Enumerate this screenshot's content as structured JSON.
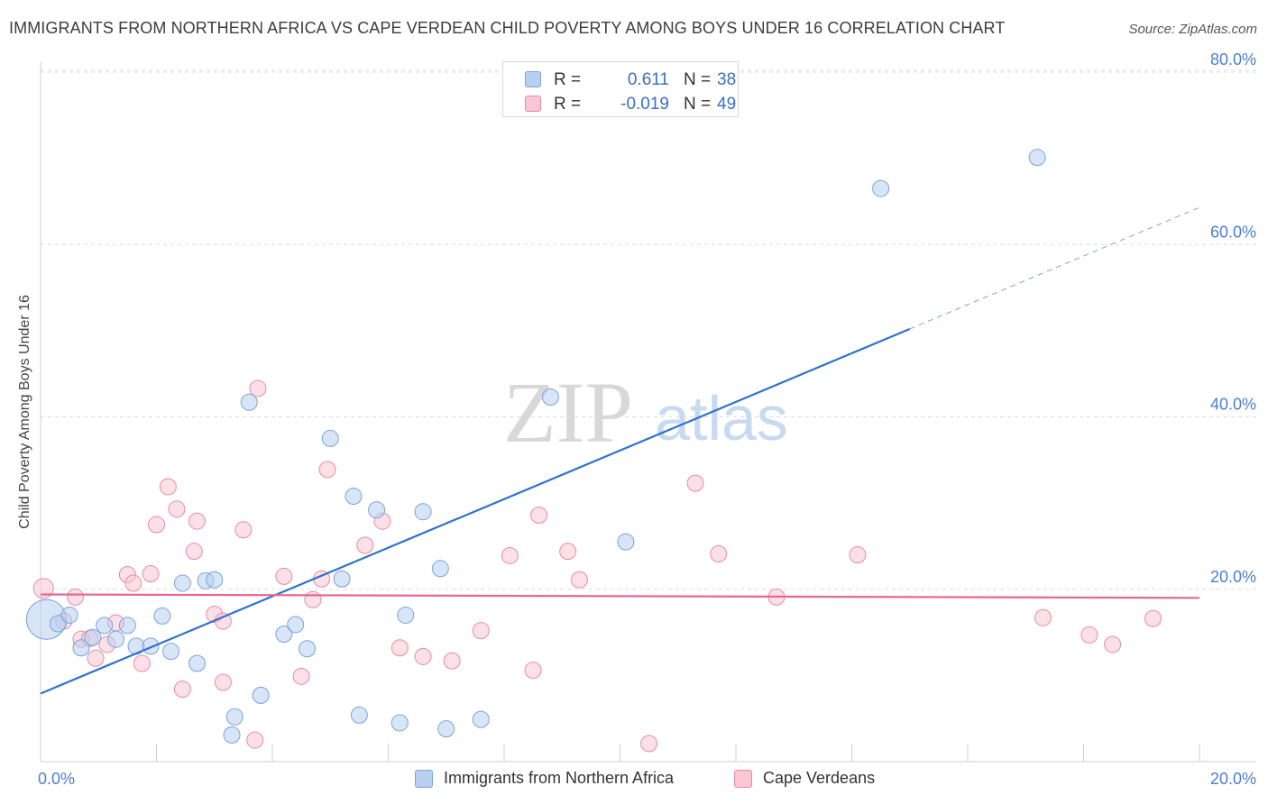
{
  "title": "IMMIGRANTS FROM NORTHERN AFRICA VS CAPE VERDEAN CHILD POVERTY AMONG BOYS UNDER 16 CORRELATION CHART",
  "source": "Source: ZipAtlas.com",
  "watermark": {
    "zip": "ZIP",
    "atlas": "atlas"
  },
  "legend_top": {
    "rows": [
      {
        "r_label": "R =",
        "r_value": "0.611",
        "n_label": "N =",
        "n_value": "38"
      },
      {
        "r_label": "R =",
        "r_value": "-0.019",
        "n_label": "N =",
        "n_value": "49"
      }
    ]
  },
  "legend_bottom": {
    "items": [
      {
        "label": "Immigrants from Northern Africa"
      },
      {
        "label": "Cape Verdeans"
      }
    ]
  },
  "colors": {
    "blue_fill": "#b8d0f0",
    "blue_stroke": "#7aa3dc",
    "blue_line": "#2f72cc",
    "pink_fill": "#f8c6d4",
    "pink_stroke": "#e88aa6",
    "pink_line": "#e56990",
    "tick_text": "#4a7fd0",
    "grid": "#dcdcdc"
  },
  "chart_data": {
    "type": "scatter",
    "title": "IMMIGRANTS FROM NORTHERN AFRICA VS CAPE VERDEAN CHILD POVERTY AMONG BOYS UNDER 16 CORRELATION CHART",
    "xlabel": "",
    "ylabel": "Child Poverty Among Boys Under 16",
    "xlim": [
      0,
      20
    ],
    "ylim": [
      0,
      82
    ],
    "x_tick_labels": [
      {
        "value": 0,
        "label": "0.0%"
      },
      {
        "value": 20,
        "label": "20.0%"
      }
    ],
    "y_ticks": [
      {
        "value": 20,
        "label": "20.0%"
      },
      {
        "value": 40,
        "label": "40.0%"
      },
      {
        "value": 60,
        "label": "60.0%"
      },
      {
        "value": 80,
        "label": "80.0%"
      }
    ],
    "x_minor_ticks": [
      2,
      4,
      6,
      8,
      10,
      12,
      14,
      16,
      18,
      20
    ],
    "grid": true,
    "legend_placement": "bottom",
    "series": [
      {
        "name": "Immigrants from Northern Africa",
        "color": "blue",
        "r": 0.611,
        "n": 38,
        "trend": {
          "x0": 0,
          "y0": 7.9,
          "x1": 15.0,
          "y1": 50.2,
          "dash_to_x": 20,
          "dash_to_y": 64.3
        },
        "points": [
          [
            0.1,
            16.5,
            22
          ],
          [
            0.3,
            16.0,
            9
          ],
          [
            0.5,
            17.0,
            9
          ],
          [
            0.7,
            13.2,
            9
          ],
          [
            0.9,
            14.4,
            9
          ],
          [
            1.1,
            15.8,
            9
          ],
          [
            1.3,
            14.2,
            9
          ],
          [
            1.5,
            15.8,
            9
          ],
          [
            1.65,
            13.4,
            9
          ],
          [
            1.9,
            13.4,
            9
          ],
          [
            2.1,
            16.9,
            9
          ],
          [
            2.25,
            12.8,
            9
          ],
          [
            2.45,
            20.7,
            9
          ],
          [
            2.7,
            11.4,
            9
          ],
          [
            2.85,
            21.0,
            9
          ],
          [
            3.0,
            21.1,
            9
          ],
          [
            3.35,
            5.2,
            9
          ],
          [
            3.3,
            3.1,
            9
          ],
          [
            3.6,
            41.7,
            9
          ],
          [
            3.8,
            7.7,
            9
          ],
          [
            4.2,
            14.8,
            9
          ],
          [
            4.4,
            15.9,
            9
          ],
          [
            4.6,
            13.1,
            9
          ],
          [
            5.0,
            37.5,
            9
          ],
          [
            5.2,
            21.2,
            9
          ],
          [
            5.4,
            30.8,
            9
          ],
          [
            5.5,
            5.4,
            9
          ],
          [
            5.8,
            29.2,
            9
          ],
          [
            6.2,
            4.5,
            9
          ],
          [
            6.3,
            17.0,
            9
          ],
          [
            6.6,
            29.0,
            9
          ],
          [
            6.9,
            22.4,
            9
          ],
          [
            7.0,
            3.8,
            9
          ],
          [
            7.6,
            4.9,
            9
          ],
          [
            8.8,
            42.3,
            9
          ],
          [
            10.1,
            25.5,
            9
          ],
          [
            14.5,
            66.5,
            9
          ],
          [
            17.2,
            70.1,
            9
          ]
        ]
      },
      {
        "name": "Cape Verdeans",
        "color": "pink",
        "r": -0.019,
        "n": 49,
        "trend": {
          "x0": 0,
          "y0": 19.4,
          "x1": 20,
          "y1": 19.0
        },
        "points": [
          [
            0.05,
            20.1,
            11
          ],
          [
            0.4,
            16.3,
            9
          ],
          [
            0.6,
            19.1,
            9
          ],
          [
            0.7,
            14.2,
            9
          ],
          [
            0.85,
            14.3,
            9
          ],
          [
            0.95,
            12.0,
            9
          ],
          [
            1.15,
            13.6,
            9
          ],
          [
            1.3,
            16.1,
            9
          ],
          [
            1.5,
            21.7,
            9
          ],
          [
            1.6,
            20.7,
            9
          ],
          [
            1.75,
            11.4,
            9
          ],
          [
            1.9,
            21.8,
            9
          ],
          [
            2.0,
            27.5,
            9
          ],
          [
            2.2,
            31.9,
            9
          ],
          [
            2.35,
            29.3,
            9
          ],
          [
            2.45,
            8.4,
            9
          ],
          [
            2.65,
            24.4,
            9
          ],
          [
            2.7,
            27.9,
            9
          ],
          [
            3.0,
            17.1,
            9
          ],
          [
            3.15,
            16.3,
            9
          ],
          [
            3.15,
            9.2,
            9
          ],
          [
            3.5,
            26.9,
            9
          ],
          [
            3.7,
            2.5,
            9
          ],
          [
            3.75,
            43.3,
            9
          ],
          [
            4.2,
            21.5,
            9
          ],
          [
            4.5,
            9.9,
            9
          ],
          [
            4.7,
            18.8,
            9
          ],
          [
            4.85,
            21.2,
            9
          ],
          [
            4.95,
            33.9,
            9
          ],
          [
            5.6,
            25.1,
            9
          ],
          [
            5.9,
            27.9,
            9
          ],
          [
            6.2,
            13.2,
            9
          ],
          [
            6.6,
            12.2,
            9
          ],
          [
            7.1,
            11.7,
            9
          ],
          [
            7.6,
            15.2,
            9
          ],
          [
            8.1,
            23.9,
            9
          ],
          [
            8.5,
            10.6,
            9
          ],
          [
            8.6,
            28.6,
            9
          ],
          [
            9.1,
            24.4,
            9
          ],
          [
            9.3,
            21.1,
            9
          ],
          [
            10.5,
            2.1,
            9
          ],
          [
            11.3,
            32.3,
            9
          ],
          [
            11.7,
            24.1,
            9
          ],
          [
            12.7,
            19.1,
            9
          ],
          [
            14.1,
            24.0,
            9
          ],
          [
            17.3,
            16.7,
            9
          ],
          [
            18.1,
            14.7,
            9
          ],
          [
            18.5,
            13.6,
            9
          ],
          [
            19.2,
            16.6,
            9
          ]
        ]
      }
    ]
  }
}
